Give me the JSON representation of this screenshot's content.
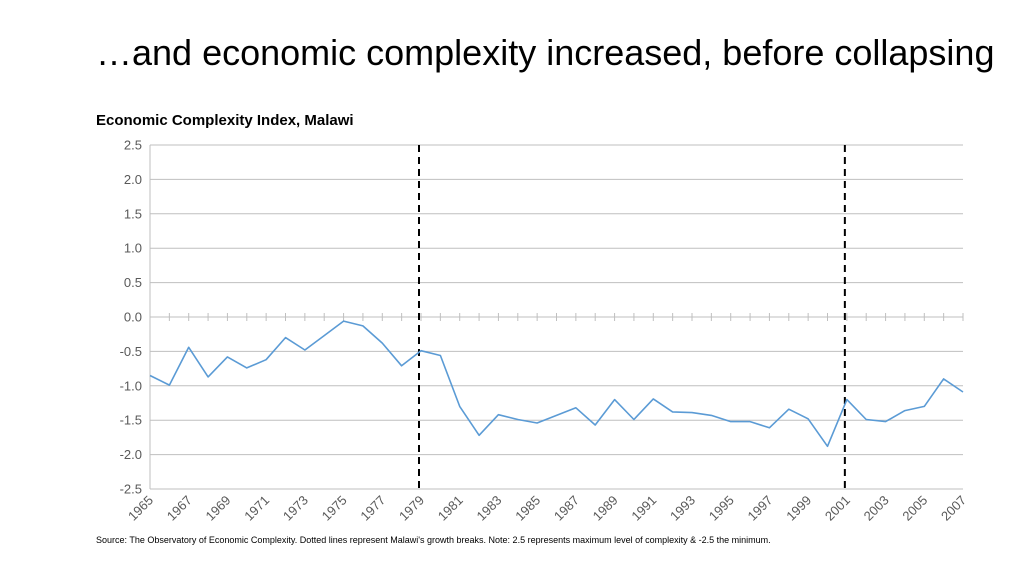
{
  "slide_title": "…and economic complexity increased, before collapsing",
  "source_note": "Source: The Observatory of Economic Complexity. Dotted lines represent Malawi's growth breaks. Note: 2.5 represents maximum level of complexity & -2.5 the minimum.",
  "chart_data": {
    "type": "line",
    "title": "Economic Complexity Index, Malawi",
    "xlabel": "",
    "ylabel": "",
    "ylim": [
      -2.5,
      2.5
    ],
    "yticks": [
      2.5,
      2.0,
      1.5,
      1.0,
      0.5,
      0.0,
      -0.5,
      -1.0,
      -1.5,
      -2.0,
      -2.5
    ],
    "ytick_labels": [
      "2.5",
      "2.0",
      "1.5",
      "1.0",
      "0.5",
      "0.0",
      "-0.5",
      "-1.0",
      "-1.5",
      "-2.0",
      "-2.5"
    ],
    "xlim": [
      1965,
      2007
    ],
    "xtick_labels": [
      "1965",
      "1967",
      "1969",
      "1971",
      "1973",
      "1975",
      "1977",
      "1979",
      "1981",
      "1983",
      "1985",
      "1987",
      "1989",
      "1991",
      "1993",
      "1995",
      "1997",
      "1999",
      "2001",
      "2003",
      "2005",
      "2007"
    ],
    "grid": true,
    "series_color": "#5b9bd5",
    "growth_breaks": [
      1979,
      2001
    ],
    "x": [
      1965,
      1966,
      1967,
      1968,
      1969,
      1970,
      1971,
      1972,
      1973,
      1974,
      1975,
      1976,
      1977,
      1978,
      1979,
      1980,
      1981,
      1982,
      1983,
      1984,
      1985,
      1986,
      1987,
      1988,
      1989,
      1990,
      1991,
      1992,
      1993,
      1994,
      1995,
      1996,
      1997,
      1998,
      1999,
      2000,
      2001,
      2002,
      2003,
      2004,
      2005,
      2006,
      2007
    ],
    "values": [
      -0.85,
      -0.99,
      -0.44,
      -0.87,
      -0.58,
      -0.74,
      -0.62,
      -0.3,
      -0.48,
      -0.27,
      -0.06,
      -0.13,
      -0.38,
      -0.71,
      -0.49,
      -0.56,
      -1.3,
      -1.72,
      -1.42,
      -1.49,
      -1.54,
      -1.43,
      -1.32,
      -1.57,
      -1.2,
      -1.49,
      -1.19,
      -1.38,
      -1.39,
      -1.43,
      -1.52,
      -1.52,
      -1.61,
      -1.34,
      -1.48,
      -1.88,
      -1.2,
      -1.49,
      -1.52,
      -1.36,
      -1.3,
      -0.9,
      -1.09
    ]
  }
}
